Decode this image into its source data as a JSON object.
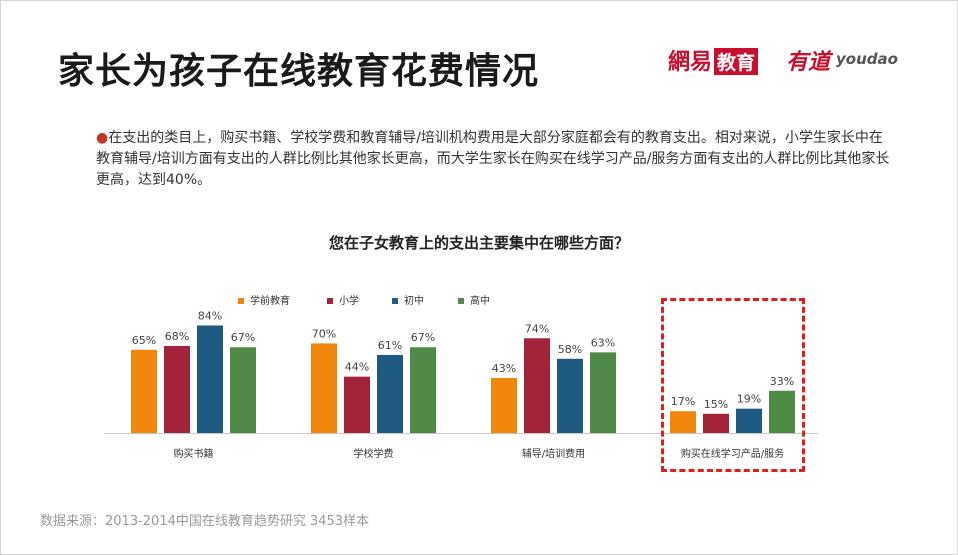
{
  "title": "家长为孩子在线教育花费情况",
  "logos": {
    "netease": "網易",
    "netease_edu": "教育",
    "youdao_cn": "有道",
    "youdao_en": "youdao"
  },
  "bullet": "在支出的类目上，购买书籍、学校学费和教育辅导/培训机构费用是大部分家庭都会有的教育支出。相对来说，小学生家长中在教育辅导/培训方面有支出的人群比例比其他家长更高，而大学生家长在购买在线学习产品/服务方面有支出的人群比例比其他家长更高，达到40%。",
  "source": "数据来源：2013-2014中国在线教育趋势研究  3453样本",
  "colors": {
    "学前教育": "#f0860b",
    "小学": "#a3233a",
    "初中": "#1f5a82",
    "高中": "#4f8a47",
    "highlight": "#e01e1e"
  },
  "chart_data": {
    "type": "bar",
    "title": "您在子女教育上的支出主要集中在哪些方面？",
    "categories": [
      "购买书籍",
      "学校学费",
      "辅导/培训费用",
      "购买在线学习产品/服务"
    ],
    "series": [
      {
        "name": "学前教育",
        "values": [
          65,
          70,
          43,
          17
        ]
      },
      {
        "name": "小学",
        "values": [
          68,
          44,
          74,
          15
        ]
      },
      {
        "name": "初中",
        "values": [
          84,
          61,
          58,
          19
        ]
      },
      {
        "name": "高中",
        "values": [
          67,
          67,
          63,
          33
        ]
      }
    ],
    "value_suffix": "%",
    "ylim": [
      0,
      100
    ],
    "grid": false,
    "legend_position": "top",
    "highlighted_category": "购买在线学习产品/服务"
  }
}
